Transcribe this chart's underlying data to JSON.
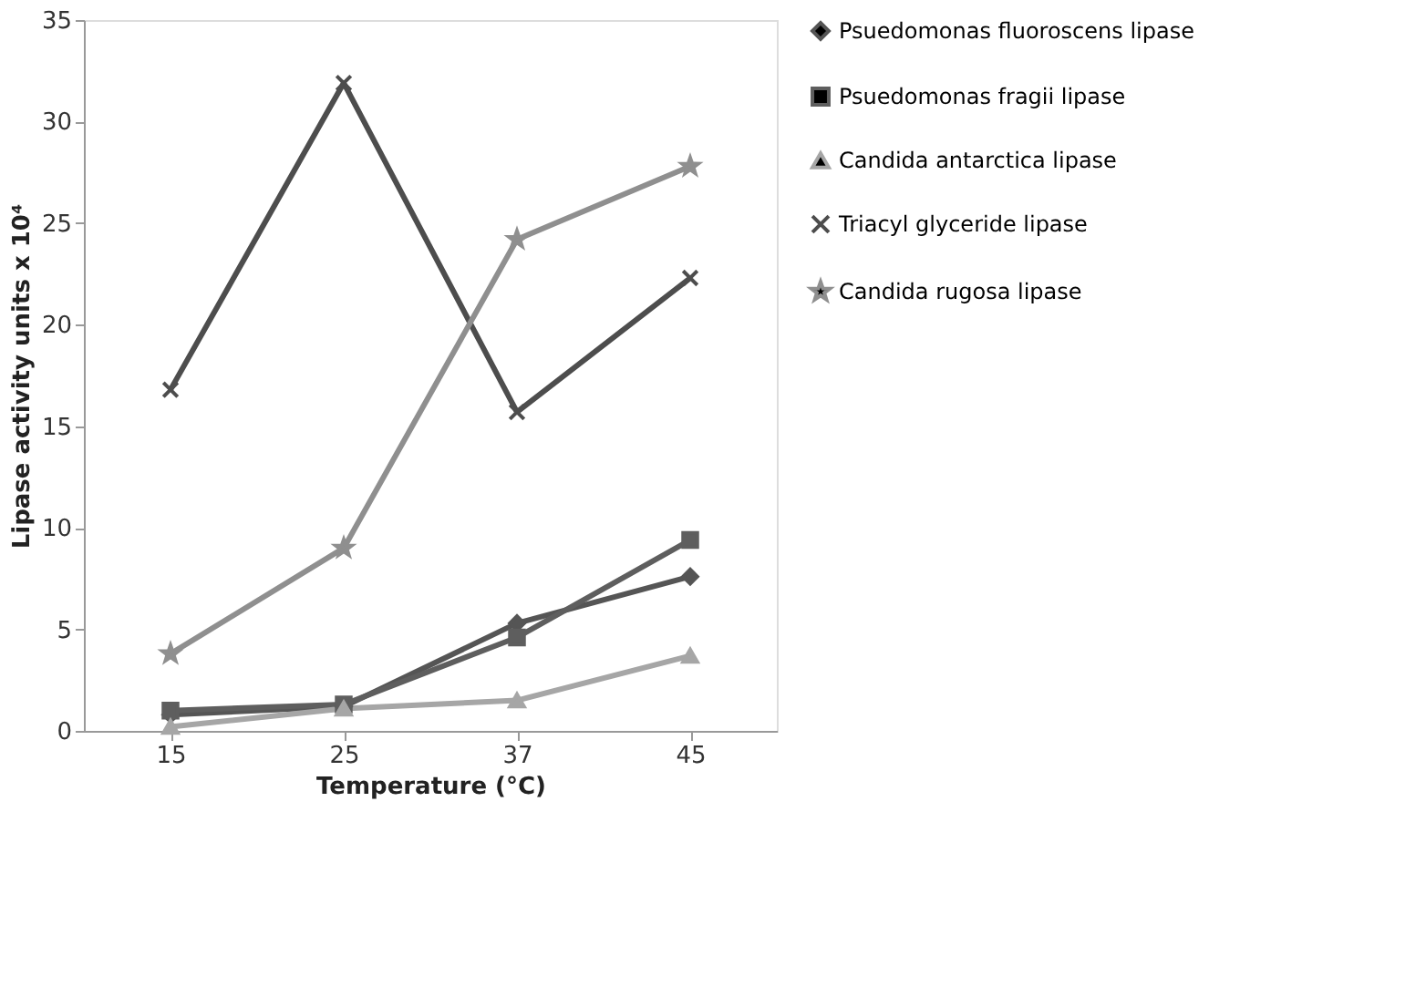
{
  "chart_data": {
    "type": "line",
    "xlabel": "Temperature (°C)",
    "ylabel": "Lipase activity units  x 10⁴",
    "categories": [
      "15",
      "25",
      "37",
      "45"
    ],
    "series": [
      {
        "name": "Psuedomonas fluoroscens lipase",
        "color": "#555555",
        "marker": "diamond",
        "values": [
          0.8,
          1.2,
          5.3,
          7.6
        ]
      },
      {
        "name": "Psuedomonas fragii lipase",
        "color": "#5e5e5e",
        "marker": "square",
        "values": [
          1.0,
          1.3,
          4.6,
          9.4
        ]
      },
      {
        "name": "Candida antarctica lipase",
        "color": "#a6a6a6",
        "marker": "triangle",
        "values": [
          0.2,
          1.1,
          1.5,
          3.7
        ]
      },
      {
        "name": "Triacyl glyceride lipase",
        "color": "#4d4d4d",
        "marker": "cross",
        "values": [
          16.8,
          31.9,
          15.7,
          22.3
        ]
      },
      {
        "name": "Candida rugosa lipase",
        "color": "#8f8f8f",
        "marker": "star",
        "values": [
          3.8,
          9.0,
          24.2,
          27.8
        ]
      }
    ],
    "ylim": [
      0,
      35
    ],
    "yticks": [
      0,
      5,
      10,
      15,
      20,
      25,
      30,
      35
    ],
    "grid": false,
    "legend": "right",
    "line_style": "solid"
  }
}
